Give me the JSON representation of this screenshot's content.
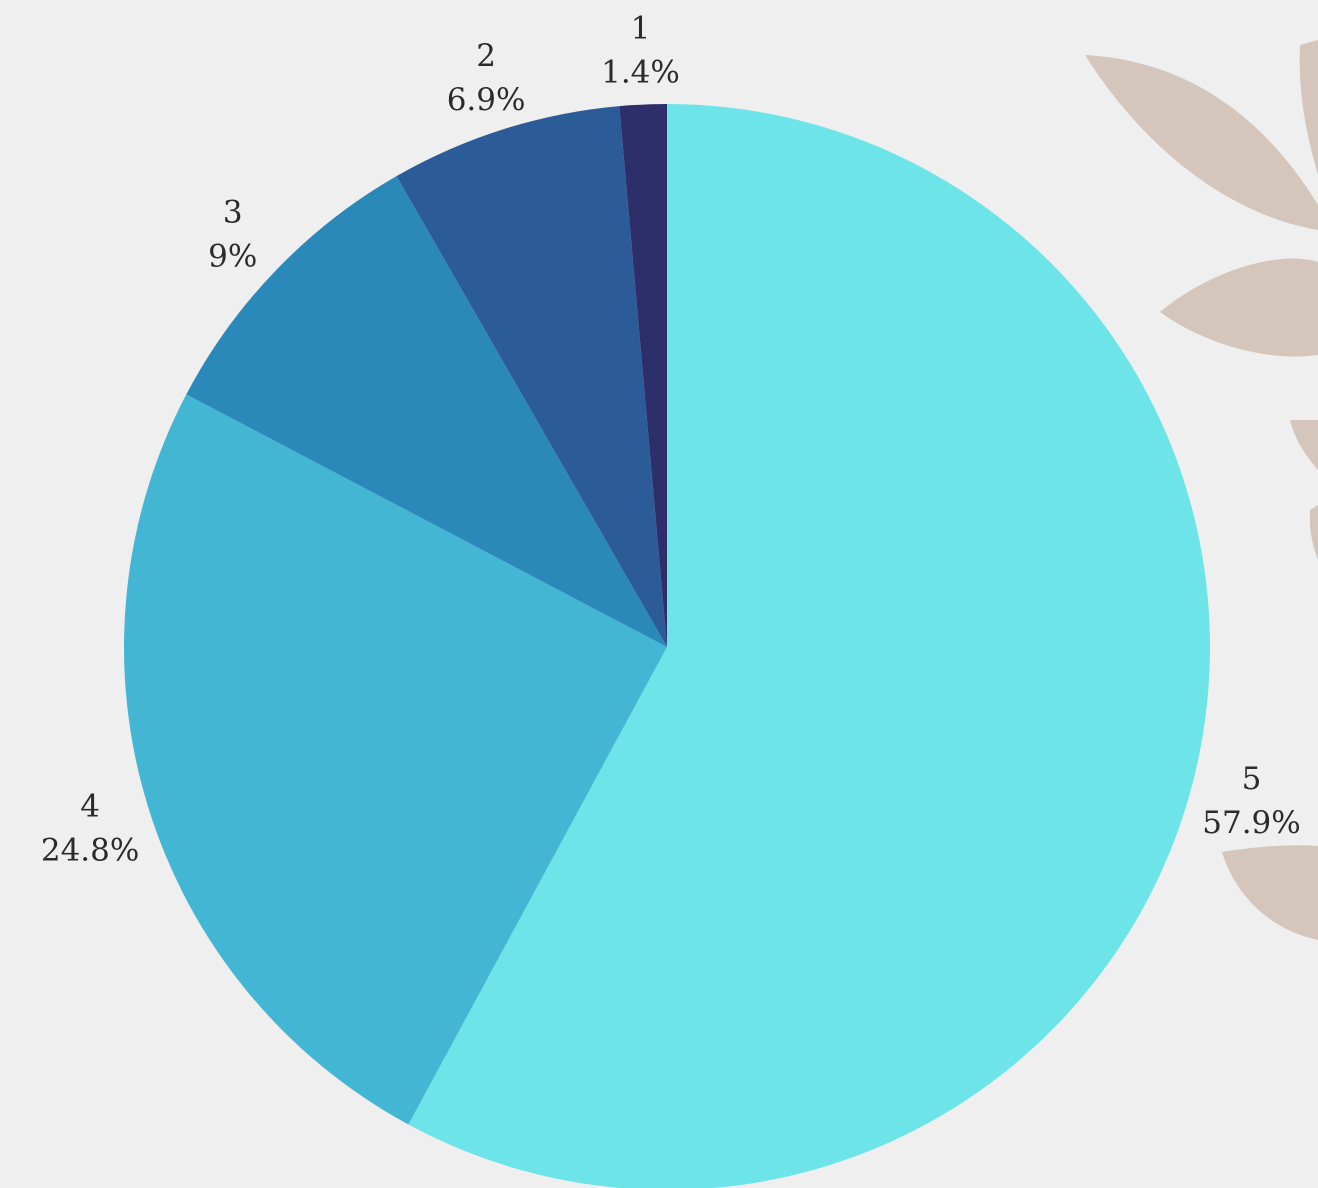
{
  "chart_data": {
    "type": "pie",
    "title": "",
    "start": "top",
    "direction": "clockwise",
    "slices": [
      {
        "label": "5",
        "value": 57.9,
        "value_label": "57.9%",
        "color": "#6ce4e8"
      },
      {
        "label": "4",
        "value": 24.8,
        "value_label": "24.8%",
        "color": "#42b6d3"
      },
      {
        "label": "3",
        "value": 9,
        "value_label": "9%",
        "color": "#2b89b9"
      },
      {
        "label": "2",
        "value": 6.9,
        "value_label": "6.9%",
        "color": "#2c5c97"
      },
      {
        "label": "1",
        "value": 1.4,
        "value_label": "1.4%",
        "color": "#2d2e6a"
      }
    ]
  },
  "decoration": {
    "leaf_color": "#d4c6bb",
    "background": "#efefef"
  }
}
